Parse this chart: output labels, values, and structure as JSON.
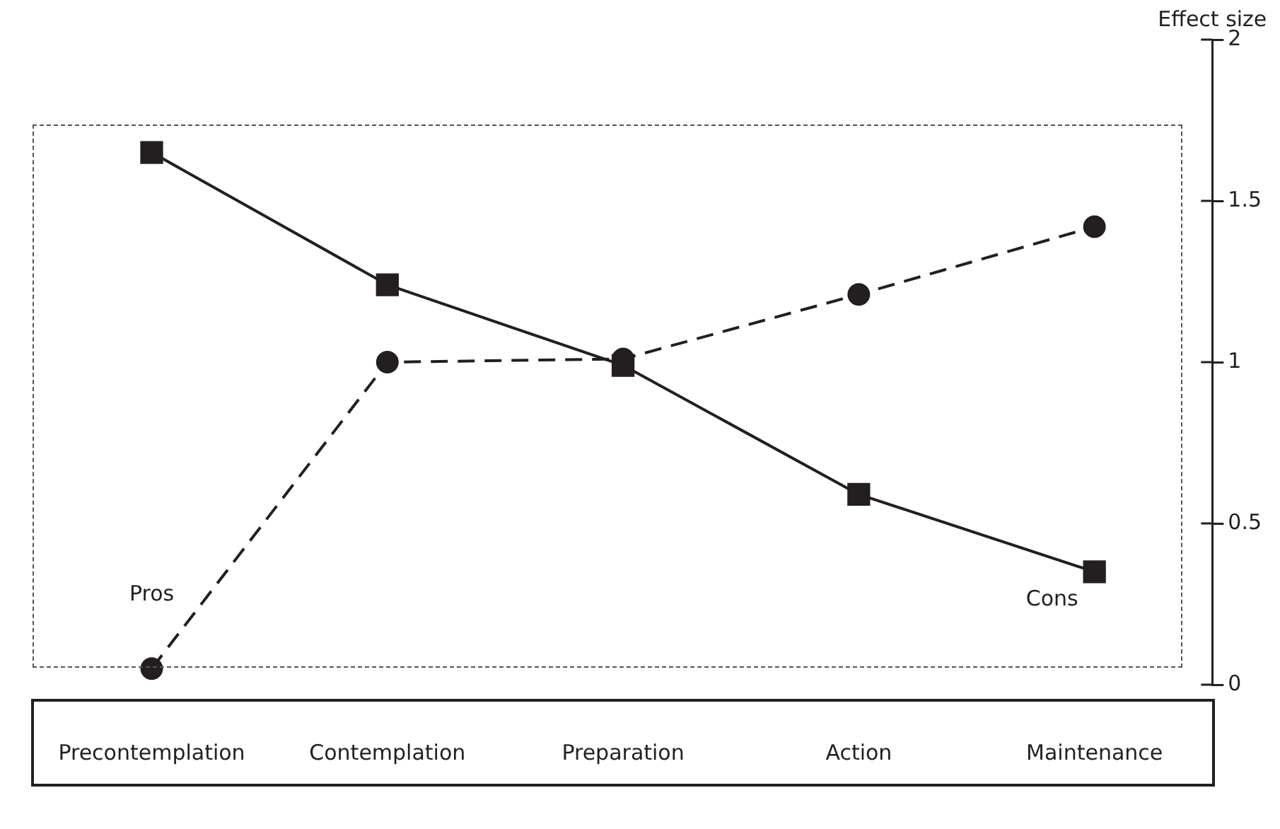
{
  "chart_data": {
    "type": "line",
    "ylabel": "Effect size",
    "categories": [
      "Precontemplation",
      "Contemplation",
      "Preparation",
      "Action",
      "Maintenance"
    ],
    "series": [
      {
        "name": "Pros",
        "color": "#231f20",
        "marker": "circle",
        "line_style": "dashed",
        "values": [
          0.05,
          1.0,
          1.01,
          1.21,
          1.42
        ]
      },
      {
        "name": "Cons",
        "color": "#231f20",
        "marker": "square",
        "line_style": "solid",
        "values": [
          1.65,
          1.24,
          0.99,
          0.59,
          0.35
        ]
      }
    ],
    "ylim": [
      0,
      2
    ],
    "yticks": [
      0,
      0.5,
      1,
      1.5,
      2
    ],
    "grid": false,
    "legend": false
  }
}
